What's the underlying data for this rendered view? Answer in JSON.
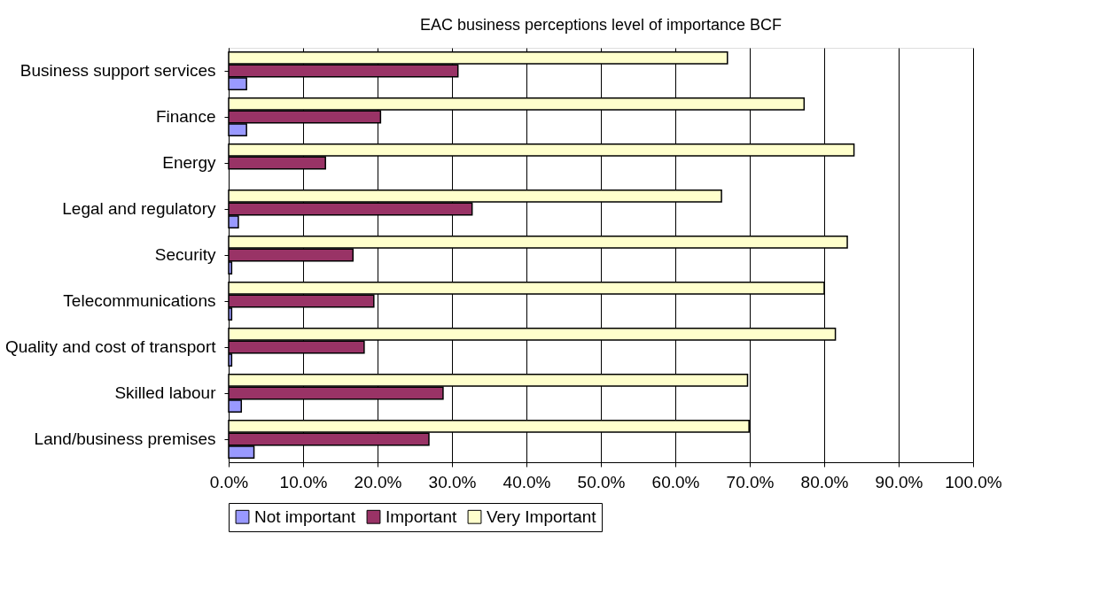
{
  "chart_data": {
    "type": "bar",
    "orientation": "horizontal",
    "title": "EAC business perceptions level of importance BCF",
    "categories": [
      "Business support services",
      "Finance",
      "Energy",
      "Legal and regulatory",
      "Security",
      "Telecommunications",
      "Quality and cost of transport ",
      "Skilled labour",
      "Land/business premises"
    ],
    "series": [
      {
        "name": "Not important",
        "color": "#9999ff",
        "values": [
          2.4,
          2.4,
          null,
          1.3,
          0.4,
          0.4,
          0.4,
          1.7,
          3.4
        ]
      },
      {
        "name": "Important",
        "color": "#993366",
        "values": [
          30.8,
          20.4,
          13.0,
          32.7,
          16.7,
          19.5,
          18.2,
          28.8,
          26.9
        ]
      },
      {
        "name": "Very Important",
        "color": "#ffffcc",
        "values": [
          67.0,
          77.3,
          84.0,
          66.2,
          83.1,
          80.0,
          81.5,
          69.7,
          69.9
        ]
      }
    ],
    "xlim": [
      0,
      100
    ],
    "xticks": [
      {
        "value": 0,
        "label": "0.0%"
      },
      {
        "value": 10,
        "label": "10.0%"
      },
      {
        "value": 20,
        "label": "20.0%"
      },
      {
        "value": 30,
        "label": "30.0%"
      },
      {
        "value": 40,
        "label": "40.0%"
      },
      {
        "value": 50,
        "label": "50.0%"
      },
      {
        "value": 60,
        "label": "60.0%"
      },
      {
        "value": 70,
        "label": "70.0%"
      },
      {
        "value": 80,
        "label": "80.0%"
      },
      {
        "value": 90,
        "label": "90.0%"
      },
      {
        "value": 100,
        "label": "100.0%"
      }
    ],
    "grid": "x",
    "legend": "bottom"
  }
}
